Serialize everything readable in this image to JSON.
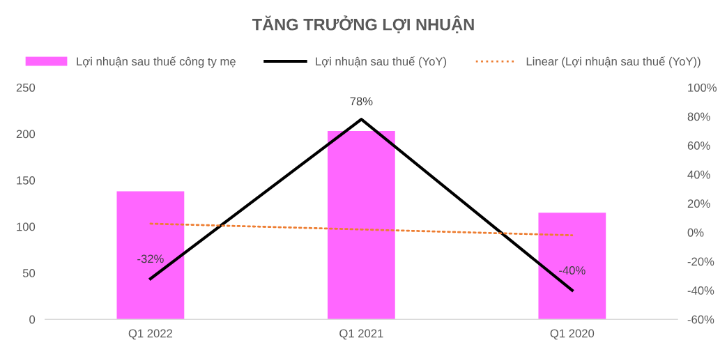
{
  "chart_data": {
    "type": "bar",
    "title": "TĂNG TRƯỞNG LỢI NHUẬN",
    "categories": [
      "Q1 2022",
      "Q1 2021",
      "Q1 2020"
    ],
    "series": [
      {
        "name": "Lợi nhuận sau thuế công ty mẹ",
        "color": "#ff66ff",
        "values": [
          138,
          203,
          115
        ]
      },
      {
        "name": "Lợi nhuận sau thuế (YoY)",
        "type": "line",
        "axis": "y2",
        "color": "#000000",
        "line_style": "solid",
        "values": [
          -32,
          78,
          -40
        ],
        "value_labels": [
          "-32%",
          "78%",
          "-40%"
        ]
      },
      {
        "name": "Linear (Lợi nhuận sau thuế (YoY))",
        "type": "line",
        "axis": "y2",
        "color": "#ed7d31",
        "line_style": "dotted",
        "values": [
          6,
          2,
          -2
        ]
      }
    ],
    "ylim": [
      0,
      250
    ],
    "yticks": [
      0,
      50,
      100,
      150,
      200,
      250
    ],
    "y2lim": [
      -60,
      100
    ],
    "y2ticks": [
      {
        "value": -60,
        "label": "-60%"
      },
      {
        "value": -40,
        "label": "-40%"
      },
      {
        "value": -20,
        "label": "-20%"
      },
      {
        "value": 0,
        "label": "0%"
      },
      {
        "value": 20,
        "label": "20%"
      },
      {
        "value": 40,
        "label": "40%"
      },
      {
        "value": 60,
        "label": "60%"
      },
      {
        "value": 80,
        "label": "80%"
      },
      {
        "value": 100,
        "label": "100%"
      }
    ],
    "legend": "top",
    "grid": false
  }
}
